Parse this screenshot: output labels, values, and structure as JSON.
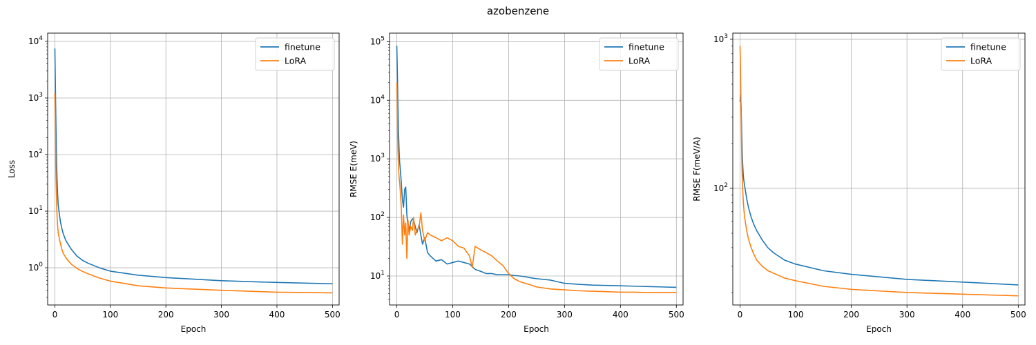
{
  "title": "azobenzene",
  "colors": {
    "finetune": "#1f77b4",
    "LoRA": "#ff7f0e",
    "grid": "#b0b0b0"
  },
  "chart_data": [
    {
      "type": "line",
      "xlabel": "Epoch",
      "ylabel": "Loss",
      "yscale": "log",
      "xlim": [
        -13,
        512
      ],
      "ylim": [
        0.22,
        14000
      ],
      "xticks": [
        0,
        100,
        200,
        300,
        400,
        500
      ],
      "xtick_labels": [
        "0",
        "100",
        "200",
        "300",
        "400",
        "500"
      ],
      "yticks": [
        1,
        10,
        100,
        1000,
        10000
      ],
      "ytick_labels": [
        "10^0",
        "10^1",
        "10^2",
        "10^3",
        "10^4"
      ],
      "grid": true,
      "legend": "upper right",
      "series": [
        {
          "name": "finetune",
          "x": [
            0,
            1,
            2,
            3,
            4,
            5,
            6,
            8,
            10,
            12,
            15,
            20,
            25,
            30,
            40,
            50,
            60,
            80,
            100,
            150,
            200,
            300,
            400,
            500
          ],
          "y": [
            7500,
            1500,
            300,
            80,
            35,
            20,
            13,
            9,
            6.5,
            5.2,
            4.0,
            3.0,
            2.5,
            2.1,
            1.6,
            1.35,
            1.2,
            1.0,
            0.87,
            0.74,
            0.67,
            0.59,
            0.55,
            0.52
          ]
        },
        {
          "name": "LoRA",
          "x": [
            0,
            1,
            2,
            3,
            4,
            5,
            6,
            8,
            10,
            12,
            15,
            20,
            25,
            30,
            40,
            50,
            60,
            80,
            100,
            150,
            200,
            300,
            400,
            500
          ],
          "y": [
            1200,
            200,
            40,
            15,
            8,
            5.5,
            4.2,
            3.3,
            2.7,
            2.2,
            1.8,
            1.5,
            1.3,
            1.15,
            0.97,
            0.86,
            0.78,
            0.66,
            0.58,
            0.48,
            0.44,
            0.4,
            0.37,
            0.36
          ]
        }
      ]
    },
    {
      "type": "line",
      "xlabel": "Epoch",
      "ylabel": "RMSE E(meV)",
      "yscale": "log",
      "xlim": [
        -13,
        512
      ],
      "ylim": [
        3.2,
        140000
      ],
      "xticks": [
        0,
        100,
        200,
        300,
        400,
        500
      ],
      "xtick_labels": [
        "0",
        "100",
        "200",
        "300",
        "400",
        "500"
      ],
      "yticks": [
        10,
        100,
        1000,
        10000,
        100000
      ],
      "ytick_labels": [
        "10^1",
        "10^2",
        "10^3",
        "10^4",
        "10^5"
      ],
      "grid": true,
      "legend": "upper right",
      "series": [
        {
          "name": "finetune",
          "x": [
            0,
            1,
            2,
            3,
            4,
            5,
            6,
            8,
            10,
            12,
            14,
            16,
            18,
            20,
            22,
            25,
            28,
            30,
            33,
            36,
            40,
            43,
            46,
            50,
            55,
            60,
            70,
            80,
            90,
            100,
            110,
            120,
            130,
            140,
            150,
            160,
            170,
            180,
            190,
            200,
            210,
            220,
            230,
            240,
            250,
            275,
            300,
            325,
            350,
            375,
            400,
            425,
            450,
            475,
            500
          ],
          "y": [
            85000,
            30000,
            8000,
            3000,
            1500,
            900,
            700,
            400,
            200,
            150,
            300,
            330,
            110,
            70,
            60,
            85,
            95,
            90,
            70,
            55,
            75,
            50,
            35,
            45,
            25,
            22,
            18,
            19,
            16,
            17,
            18,
            17,
            16,
            13,
            12,
            11,
            11,
            10.5,
            10.5,
            10.5,
            10.2,
            10,
            9.7,
            9.3,
            9,
            8.5,
            7.5,
            7.2,
            7,
            6.9,
            6.8,
            6.7,
            6.6,
            6.5,
            6.4
          ]
        },
        {
          "name": "LoRA",
          "x": [
            0,
            1,
            2,
            3,
            4,
            5,
            6,
            8,
            10,
            12,
            14,
            16,
            18,
            20,
            22,
            25,
            28,
            30,
            33,
            36,
            40,
            43,
            46,
            50,
            55,
            60,
            70,
            80,
            90,
            100,
            110,
            120,
            130,
            135,
            140,
            150,
            160,
            170,
            180,
            190,
            200,
            210,
            220,
            230,
            240,
            250,
            275,
            300,
            325,
            350,
            375,
            400,
            425,
            450,
            475,
            500
          ],
          "y": [
            20000,
            5000,
            1500,
            700,
            500,
            400,
            300,
            150,
            35,
            110,
            50,
            80,
            20,
            90,
            50,
            70,
            60,
            100,
            50,
            60,
            70,
            120,
            60,
            40,
            55,
            50,
            45,
            40,
            45,
            40,
            32,
            30,
            22,
            14,
            32,
            28,
            25,
            22,
            18,
            15,
            11,
            9,
            8,
            7.5,
            7,
            6.5,
            6,
            5.8,
            5.6,
            5.5,
            5.4,
            5.3,
            5.3,
            5.2,
            5.2,
            5.2
          ]
        }
      ]
    },
    {
      "type": "line",
      "xlabel": "Epoch",
      "ylabel": "RMSE F(meV/A)",
      "yscale": "log",
      "xlim": [
        -13,
        512
      ],
      "ylim": [
        16.5,
        1100
      ],
      "xticks": [
        0,
        100,
        200,
        300,
        400,
        500
      ],
      "xtick_labels": [
        "0",
        "100",
        "200",
        "300",
        "400",
        "500"
      ],
      "yticks": [
        100,
        1000
      ],
      "ytick_labels": [
        "10^2",
        "10^3"
      ],
      "grid": true,
      "legend": "upper right",
      "series": [
        {
          "name": "finetune",
          "x": [
            0,
            1,
            2,
            3,
            4,
            5,
            6,
            8,
            10,
            12,
            15,
            20,
            25,
            30,
            40,
            50,
            60,
            80,
            100,
            150,
            200,
            300,
            400,
            500
          ],
          "y": [
            380,
            420,
            350,
            240,
            170,
            140,
            120,
            105,
            95,
            85,
            75,
            64,
            57,
            52,
            45,
            40,
            37,
            33,
            31,
            28,
            26.5,
            24.5,
            23.5,
            22.5
          ]
        },
        {
          "name": "LoRA",
          "x": [
            0,
            1,
            2,
            3,
            4,
            5,
            6,
            8,
            10,
            12,
            15,
            20,
            25,
            30,
            40,
            50,
            60,
            80,
            100,
            150,
            200,
            300,
            400,
            500
          ],
          "y": [
            900,
            600,
            300,
            170,
            120,
            95,
            80,
            65,
            58,
            52,
            46,
            40,
            36,
            33,
            30,
            28,
            27,
            25,
            24,
            22,
            21,
            20,
            19.5,
            19
          ]
        }
      ]
    }
  ]
}
